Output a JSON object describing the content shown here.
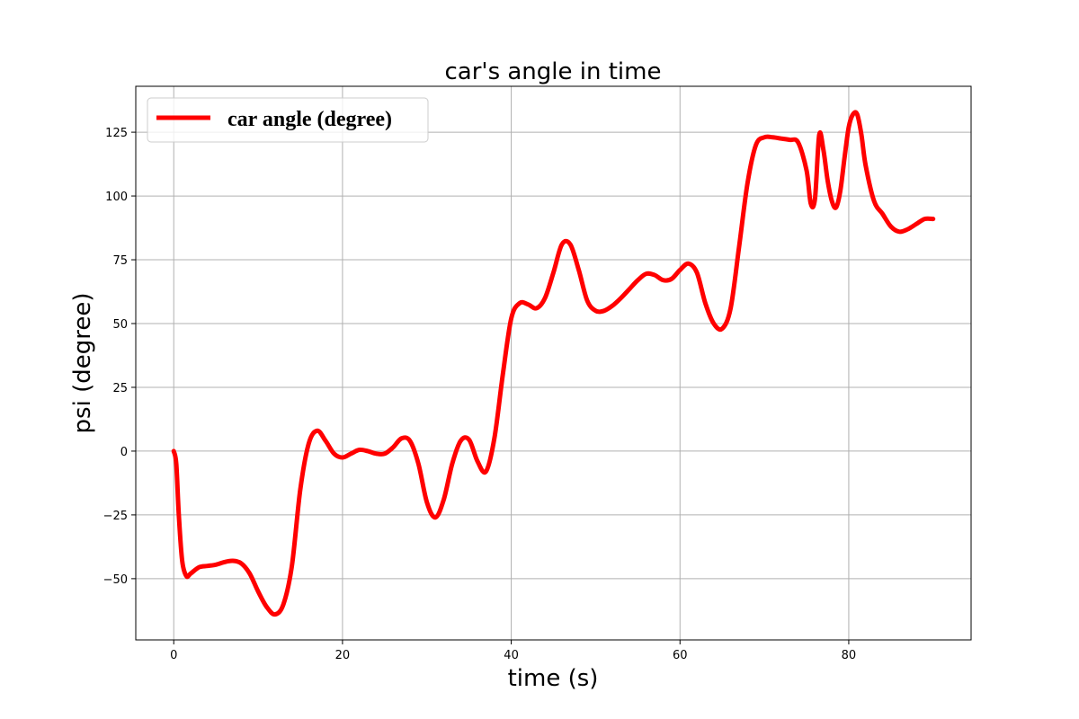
{
  "chart_data": {
    "type": "line",
    "title": "car's angle in time",
    "xlabel": "time (s)",
    "ylabel": "psi (degree)",
    "xlim": [
      -4.5,
      94.5
    ],
    "ylim": [
      -74,
      143
    ],
    "xticks": [
      0,
      20,
      40,
      60,
      80
    ],
    "yticks": [
      -50,
      -25,
      0,
      25,
      50,
      75,
      100,
      125
    ],
    "ytick_labels": [
      "−50",
      "−25",
      "0",
      "25",
      "50",
      "75",
      "100",
      "125"
    ],
    "grid": true,
    "legend": {
      "location": "top-left",
      "entries": [
        "car angle (degree)"
      ]
    },
    "series": [
      {
        "name": "car angle (degree)",
        "color": "#ff0000",
        "x": [
          0,
          0.3,
          0.6,
          1.0,
          1.5,
          2.0,
          3.0,
          4.0,
          5.0,
          6.0,
          7.0,
          8.0,
          9.0,
          10.0,
          11.0,
          12.0,
          13.0,
          14.0,
          15.0,
          16.0,
          17.0,
          18.0,
          19.0,
          20.0,
          21.0,
          22.0,
          23.0,
          24.0,
          25.0,
          26.0,
          27.0,
          28.0,
          29.0,
          30.0,
          31.0,
          32.0,
          33.0,
          34.0,
          35.0,
          36.0,
          37.0,
          38.0,
          39.0,
          40.0,
          41.0,
          42.0,
          43.0,
          44.0,
          45.0,
          46.0,
          47.0,
          48.0,
          49.0,
          50.0,
          51.0,
          52.0,
          53.0,
          54.0,
          55.0,
          56.0,
          57.0,
          58.0,
          59.0,
          60.0,
          61.0,
          62.0,
          63.0,
          64.0,
          65.0,
          66.0,
          67.0,
          68.0,
          69.0,
          70.0,
          71.0,
          72.0,
          73.0,
          74.0,
          75.0,
          75.5,
          76.0,
          76.5,
          77.0,
          77.5,
          78.0,
          78.5,
          79.0,
          79.5,
          80.0,
          80.5,
          81.0,
          81.5,
          82.0,
          83.0,
          84.0,
          85.0,
          86.0,
          87.0,
          88.0,
          89.0,
          90.0
        ],
        "y": [
          0,
          -5,
          -25,
          -43,
          -49,
          -48,
          -45.5,
          -45,
          -44.5,
          -43.5,
          -43,
          -44,
          -48,
          -55,
          -61,
          -64,
          -60,
          -45,
          -15,
          3,
          8,
          4,
          -1,
          -2.5,
          -1,
          0.5,
          0,
          -1,
          -1,
          1.5,
          5,
          4,
          -5,
          -20,
          -26,
          -19,
          -5,
          4,
          4.5,
          -4,
          -8,
          5,
          30,
          52,
          58,
          57.5,
          56,
          60,
          70,
          81,
          81,
          71,
          59,
          55,
          55,
          57,
          60,
          63.5,
          67,
          69.5,
          69,
          67,
          67.5,
          71,
          73.5,
          70,
          58,
          50,
          48,
          56,
          80,
          105,
          120,
          123,
          123,
          122.5,
          122,
          121,
          110,
          97,
          99,
          124,
          118,
          106,
          98,
          95.5,
          102,
          115,
          127,
          132,
          132,
          124,
          112,
          98,
          93,
          88,
          86,
          87,
          89,
          91,
          91
        ]
      }
    ]
  }
}
